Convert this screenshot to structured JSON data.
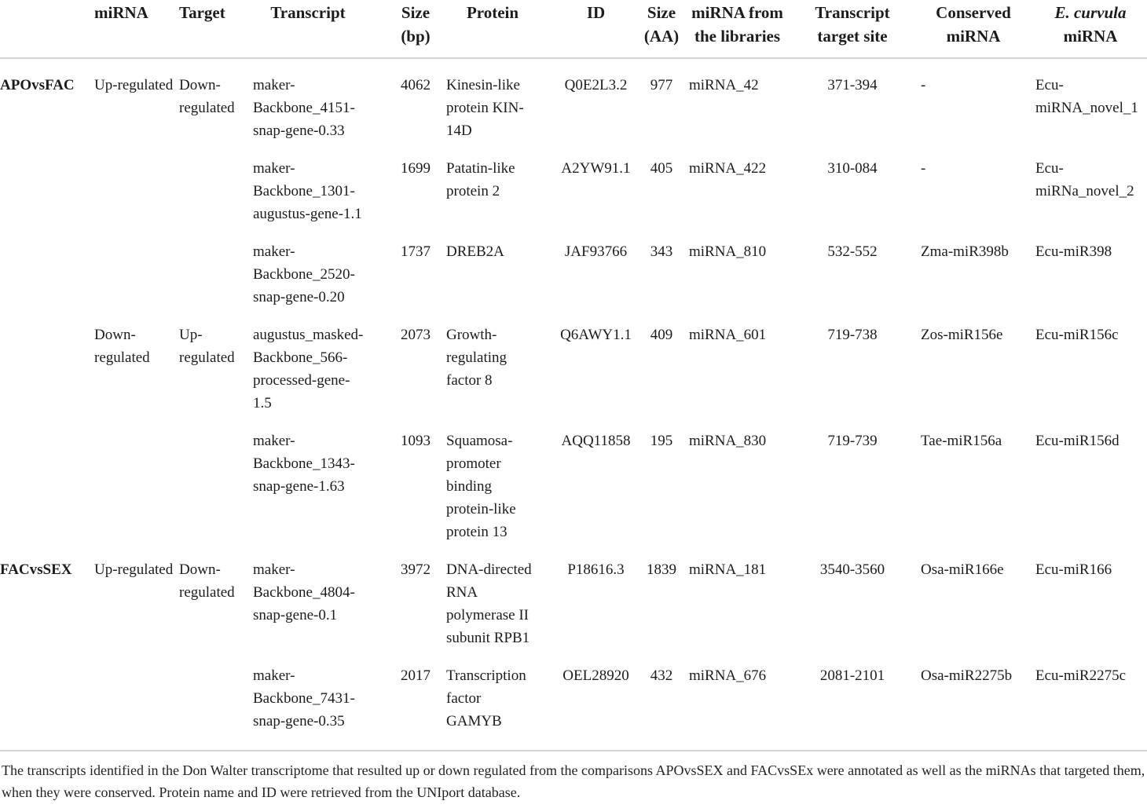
{
  "table": {
    "columns": [
      {
        "key": "comparison",
        "label": ""
      },
      {
        "key": "mirna",
        "label": "miRNA"
      },
      {
        "key": "target",
        "label": "Target"
      },
      {
        "key": "transcript",
        "label": "Transcript"
      },
      {
        "key": "size_bp",
        "label": "Size (bp)"
      },
      {
        "key": "protein",
        "label": "Protein"
      },
      {
        "key": "id",
        "label": "ID"
      },
      {
        "key": "size_aa",
        "label": "Size (AA)"
      },
      {
        "key": "mirna_lib",
        "label": "miRNA from the libraries"
      },
      {
        "key": "target_site",
        "label": "Transcript target site"
      },
      {
        "key": "conserved",
        "label": "Conserved miRNA"
      },
      {
        "key": "ecu",
        "label": "E. curvula miRNA",
        "italic_part": "E. curvula"
      }
    ],
    "rows": [
      {
        "comparison": "APOvsFAC",
        "mirna": "Up-regulated",
        "target": "Down-regulated",
        "transcript": "maker-Backbone_4151-snap-gene-0.33",
        "size_bp": "4062",
        "protein": "Kinesin-like protein KIN-14D",
        "id": "Q0E2L3.2",
        "size_aa": "977",
        "mirna_lib": "miRNA_42",
        "target_site": "371-394",
        "conserved": "-",
        "ecu": "Ecu-miRNA_novel_1"
      },
      {
        "comparison": "",
        "mirna": "",
        "target": "",
        "transcript": "maker-Backbone_1301-augustus-gene-1.1",
        "size_bp": "1699",
        "protein": "Patatin-like protein 2",
        "id": "A2YW91.1",
        "size_aa": "405",
        "mirna_lib": "miRNA_422",
        "target_site": "310-084",
        "conserved": "-",
        "ecu": "Ecu-miRNa_novel_2"
      },
      {
        "comparison": "",
        "mirna": "",
        "target": "",
        "transcript": "maker-Backbone_2520-snap-gene-0.20",
        "size_bp": "1737",
        "protein": "DREB2A",
        "id": "JAF93766",
        "size_aa": "343",
        "mirna_lib": "miRNA_810",
        "target_site": "532-552",
        "conserved": "Zma-miR398b",
        "ecu": "Ecu-miR398"
      },
      {
        "comparison": "",
        "mirna": "Down-regulated",
        "target": "Up-regulated",
        "transcript": "augustus_masked-Backbone_566-processed-gene-1.5",
        "size_bp": "2073",
        "protein": "Growth-regulating factor 8",
        "id": "Q6AWY1.1",
        "size_aa": "409",
        "mirna_lib": "miRNA_601",
        "target_site": "719-738",
        "conserved": "Zos-miR156e",
        "ecu": "Ecu-miR156c"
      },
      {
        "comparison": "",
        "mirna": "",
        "target": "",
        "transcript": "maker-Backbone_1343-snap-gene-1.63",
        "size_bp": "1093",
        "protein": "Squamosa-promoter binding protein-like protein 13",
        "id": "AQQ11858",
        "size_aa": "195",
        "mirna_lib": "miRNA_830",
        "target_site": "719-739",
        "conserved": "Tae-miR156a",
        "ecu": "Ecu-miR156d"
      },
      {
        "comparison": "FACvsSEX",
        "mirna": "Up-regulated",
        "target": "Down-regulated",
        "transcript": "maker-Backbone_4804-snap-gene-0.1",
        "size_bp": "3972",
        "protein": "DNA-directed RNA polymerase II subunit RPB1",
        "id": "P18616.3",
        "size_aa": "1839",
        "mirna_lib": "miRNA_181",
        "target_site": "3540-3560",
        "conserved": "Osa-miR166e",
        "ecu": "Ecu-miR166"
      },
      {
        "comparison": "",
        "mirna": "",
        "target": "",
        "transcript": "maker-Backbone_7431-snap-gene-0.35",
        "size_bp": "2017",
        "protein": "Transcription factor GAMYB",
        "id": "OEL28920",
        "size_aa": "432",
        "mirna_lib": "miRNA_676",
        "target_site": "2081-2101",
        "conserved": "Osa-miR2275b",
        "ecu": "Ecu-miR2275c"
      }
    ]
  },
  "footnote": "The transcripts identified in the Don Walter transcriptome that resulted up or down regulated from the comparisons APOvsSEX and FACvsSEx were annotated as well as the miRNAs that targeted them, when they were conserved. Protein name and ID were retrieved from the UNIport database."
}
